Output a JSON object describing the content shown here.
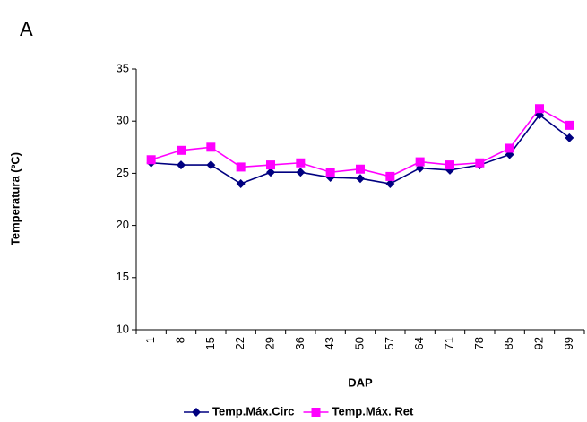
{
  "chart_data": {
    "type": "line",
    "title": "A",
    "x_label": "DAP",
    "y_label": "Temperatura (ºC)",
    "categories": [
      "1",
      "8",
      "15",
      "22",
      "29",
      "36",
      "43",
      "50",
      "57",
      "64",
      "71",
      "78",
      "85",
      "92",
      "99"
    ],
    "series": [
      {
        "name": "Temp.Máx.Circ",
        "color": "#000080",
        "marker": "diamond",
        "values": [
          26.0,
          25.8,
          25.8,
          24.0,
          25.1,
          25.1,
          24.6,
          24.5,
          24.0,
          25.5,
          25.3,
          25.8,
          26.8,
          30.6,
          28.4
        ]
      },
      {
        "name": "Temp.Máx. Ret",
        "color": "#ff00ff",
        "marker": "square",
        "values": [
          26.3,
          27.2,
          27.5,
          25.6,
          25.8,
          26.0,
          25.1,
          25.4,
          24.7,
          26.1,
          25.8,
          26.0,
          27.4,
          31.2,
          29.6
        ]
      }
    ],
    "ylim": [
      10,
      35
    ],
    "yticks": [
      10,
      15,
      20,
      25,
      30,
      35
    ],
    "grid": false,
    "legend": "bottom"
  }
}
